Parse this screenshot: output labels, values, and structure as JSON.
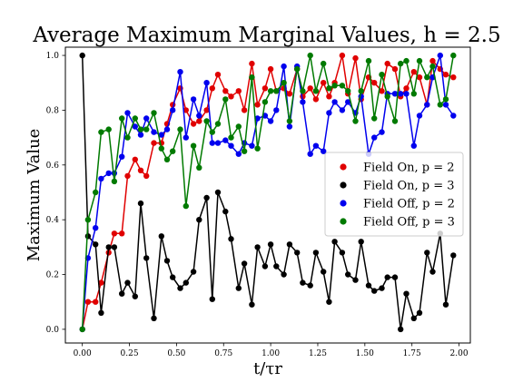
{
  "chart_data": {
    "type": "line",
    "title": "Average Maximum Marginal Values, h = 2.5",
    "xlabel": "t/τr",
    "ylabel": "Maximum Value",
    "xlim": [
      -0.09,
      2.06
    ],
    "ylim": [
      -0.05,
      1.03
    ],
    "xticks": [
      0.0,
      0.25,
      0.5,
      0.75,
      1.0,
      1.25,
      1.5,
      1.75,
      2.0
    ],
    "xtick_labels": [
      "0.00",
      "0.25",
      "0.50",
      "0.75",
      "1.00",
      "1.25",
      "1.50",
      "1.75",
      "2.00"
    ],
    "yticks": [
      0.0,
      0.2,
      0.4,
      0.6,
      0.8,
      1.0
    ],
    "ytick_labels": [
      "0.0",
      "0.2",
      "0.4",
      "0.6",
      "0.8",
      "1.0"
    ],
    "grid": false,
    "legend_position": "center-right",
    "series": [
      {
        "name": "Field On, p = 2",
        "color": "#e00000",
        "x": [
          0.0,
          0.03,
          0.07,
          0.1,
          0.14,
          0.17,
          0.21,
          0.24,
          0.28,
          0.31,
          0.34,
          0.38,
          0.42,
          0.45,
          0.48,
          0.52,
          0.55,
          0.59,
          0.62,
          0.66,
          0.69,
          0.72,
          0.76,
          0.79,
          0.83,
          0.86,
          0.9,
          0.93,
          0.97,
          1.0,
          1.03,
          1.07,
          1.1,
          1.14,
          1.17,
          1.21,
          1.24,
          1.28,
          1.31,
          1.34,
          1.38,
          1.41,
          1.45,
          1.48,
          1.52,
          1.55,
          1.59,
          1.62,
          1.66,
          1.69,
          1.72,
          1.76,
          1.79,
          1.83,
          1.86,
          1.9,
          1.93,
          1.97
        ],
        "y": [
          0.0,
          0.1,
          0.1,
          0.17,
          0.28,
          0.35,
          0.35,
          0.56,
          0.62,
          0.58,
          0.56,
          0.68,
          0.68,
          0.75,
          0.82,
          0.88,
          0.8,
          0.75,
          0.76,
          0.8,
          0.88,
          0.93,
          0.87,
          0.85,
          0.87,
          0.8,
          0.97,
          0.82,
          0.88,
          0.95,
          0.87,
          0.88,
          0.86,
          0.95,
          0.85,
          0.88,
          0.84,
          0.9,
          0.85,
          0.9,
          1.0,
          0.86,
          0.99,
          0.84,
          0.92,
          0.9,
          0.87,
          0.97,
          0.95,
          0.85,
          0.88,
          0.94,
          0.92,
          0.82,
          0.98,
          0.95,
          0.93,
          0.92
        ]
      },
      {
        "name": "Field On, p = 3",
        "color": "#000000",
        "x": [
          0.0,
          0.03,
          0.07,
          0.1,
          0.14,
          0.17,
          0.21,
          0.24,
          0.28,
          0.31,
          0.34,
          0.38,
          0.42,
          0.45,
          0.48,
          0.52,
          0.55,
          0.59,
          0.62,
          0.66,
          0.69,
          0.72,
          0.76,
          0.79,
          0.83,
          0.86,
          0.9,
          0.93,
          0.97,
          1.0,
          1.03,
          1.07,
          1.1,
          1.14,
          1.17,
          1.21,
          1.24,
          1.28,
          1.31,
          1.34,
          1.38,
          1.41,
          1.45,
          1.48,
          1.52,
          1.55,
          1.59,
          1.62,
          1.66,
          1.69,
          1.72,
          1.76,
          1.79,
          1.83,
          1.86,
          1.9,
          1.93,
          1.97
        ],
        "y": [
          1.0,
          0.34,
          0.31,
          0.06,
          0.3,
          0.3,
          0.13,
          0.17,
          0.12,
          0.46,
          0.26,
          0.04,
          0.34,
          0.25,
          0.19,
          0.15,
          0.17,
          0.21,
          0.4,
          0.48,
          0.11,
          0.5,
          0.43,
          0.33,
          0.15,
          0.24,
          0.09,
          0.3,
          0.23,
          0.31,
          0.23,
          0.2,
          0.31,
          0.28,
          0.17,
          0.16,
          0.28,
          0.21,
          0.1,
          0.32,
          0.28,
          0.2,
          0.18,
          0.32,
          0.16,
          0.14,
          0.15,
          0.19,
          0.19,
          0.0,
          0.13,
          0.04,
          0.06,
          0.28,
          0.21,
          0.35,
          0.09,
          0.27
        ]
      },
      {
        "name": "Field Off, p = 2",
        "color": "#0000ee",
        "x": [
          0.0,
          0.03,
          0.07,
          0.1,
          0.14,
          0.17,
          0.21,
          0.24,
          0.28,
          0.31,
          0.34,
          0.38,
          0.42,
          0.45,
          0.48,
          0.52,
          0.55,
          0.59,
          0.62,
          0.66,
          0.69,
          0.72,
          0.76,
          0.79,
          0.83,
          0.86,
          0.9,
          0.93,
          0.97,
          1.0,
          1.03,
          1.07,
          1.1,
          1.14,
          1.17,
          1.21,
          1.24,
          1.28,
          1.31,
          1.34,
          1.38,
          1.41,
          1.45,
          1.48,
          1.52,
          1.55,
          1.59,
          1.62,
          1.66,
          1.69,
          1.72,
          1.76,
          1.79,
          1.83,
          1.86,
          1.9,
          1.93,
          1.97
        ],
        "y": [
          0.0,
          0.26,
          0.37,
          0.55,
          0.57,
          0.57,
          0.63,
          0.79,
          0.74,
          0.71,
          0.77,
          0.72,
          0.71,
          0.73,
          0.8,
          0.94,
          0.7,
          0.84,
          0.78,
          0.9,
          0.68,
          0.68,
          0.69,
          0.67,
          0.64,
          0.68,
          0.67,
          0.77,
          0.78,
          0.76,
          0.8,
          0.96,
          0.74,
          0.96,
          0.83,
          0.64,
          0.67,
          0.65,
          0.79,
          0.83,
          0.8,
          0.83,
          0.79,
          0.85,
          0.64,
          0.7,
          0.72,
          0.86,
          0.86,
          0.86,
          0.86,
          0.67,
          0.78,
          0.82,
          0.92,
          1.0,
          0.82,
          0.78
        ]
      },
      {
        "name": "Field Off, p = 3",
        "color": "#007a00",
        "x": [
          0.0,
          0.03,
          0.07,
          0.1,
          0.14,
          0.17,
          0.21,
          0.24,
          0.28,
          0.31,
          0.34,
          0.38,
          0.42,
          0.45,
          0.48,
          0.52,
          0.55,
          0.59,
          0.62,
          0.66,
          0.69,
          0.72,
          0.76,
          0.79,
          0.83,
          0.86,
          0.9,
          0.93,
          0.97,
          1.0,
          1.03,
          1.07,
          1.1,
          1.14,
          1.17,
          1.21,
          1.24,
          1.28,
          1.31,
          1.34,
          1.38,
          1.41,
          1.45,
          1.48,
          1.52,
          1.55,
          1.59,
          1.62,
          1.66,
          1.69,
          1.72,
          1.76,
          1.79,
          1.83,
          1.86,
          1.9,
          1.93,
          1.97
        ],
        "y": [
          0.0,
          0.4,
          0.5,
          0.72,
          0.73,
          0.54,
          0.77,
          0.7,
          0.77,
          0.73,
          0.73,
          0.79,
          0.66,
          0.62,
          0.65,
          0.73,
          0.45,
          0.67,
          0.59,
          0.76,
          0.72,
          0.75,
          0.84,
          0.7,
          0.74,
          0.65,
          0.92,
          0.66,
          0.83,
          0.87,
          0.87,
          0.9,
          0.76,
          0.95,
          0.87,
          1.0,
          0.87,
          0.97,
          0.88,
          0.89,
          0.89,
          0.87,
          0.76,
          0.87,
          0.98,
          0.77,
          0.93,
          0.85,
          0.76,
          0.97,
          0.98,
          0.86,
          0.98,
          0.92,
          0.96,
          0.82,
          0.84,
          1.0
        ]
      }
    ]
  }
}
